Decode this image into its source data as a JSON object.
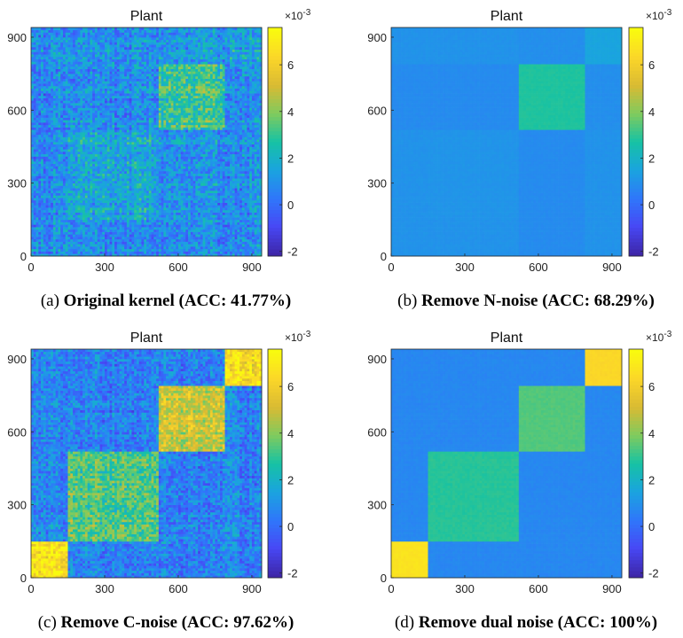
{
  "colormap": "parula",
  "colors": {
    "parula_stops": [
      "#3e26a8",
      "#4748f5",
      "#2f77fa",
      "#1aa4df",
      "#16c2a4",
      "#7fcb5e",
      "#d9ba33",
      "#fbd629",
      "#f9fb0e"
    ]
  },
  "chart_data": [
    {
      "type": "heatmap",
      "title": "Plant",
      "caption_label": "(a)",
      "caption_text": "Original kernel (ACC: 41.77%)",
      "xlim": [
        0,
        940
      ],
      "ylim": [
        0,
        940
      ],
      "xticks": [
        0,
        300,
        600,
        900
      ],
      "yticks": [
        0,
        300,
        600,
        900
      ],
      "color_range": [
        -2.2,
        7.6
      ],
      "colorbar_ticks": [
        -2,
        0,
        2,
        4,
        6
      ],
      "colorbar_multiplier": "×10-3",
      "cluster_boundaries": [
        0,
        150,
        520,
        790,
        940
      ],
      "cluster_block_means": [
        [
          1.0,
          0.8,
          0.8,
          0.9
        ],
        [
          0.8,
          1.6,
          0.9,
          0.9
        ],
        [
          0.8,
          0.9,
          3.0,
          1.0
        ],
        [
          0.9,
          0.9,
          1.0,
          1.4
        ]
      ],
      "noise_level": 1.3,
      "row_col_noise": 0.9
    },
    {
      "type": "heatmap",
      "title": "Plant",
      "caption_label": "(b)",
      "caption_text": "Remove N-noise (ACC: 68.29%)",
      "xlim": [
        0,
        940
      ],
      "ylim": [
        0,
        940
      ],
      "xticks": [
        0,
        300,
        600,
        900
      ],
      "yticks": [
        0,
        300,
        600,
        900
      ],
      "color_range": [
        -2.2,
        7.6
      ],
      "colorbar_ticks": [
        -2,
        0,
        2,
        4,
        6
      ],
      "colorbar_multiplier": "×10-3",
      "cluster_boundaries": [
        0,
        150,
        520,
        790,
        940
      ],
      "cluster_block_means": [
        [
          1.0,
          1.0,
          0.8,
          1.0
        ],
        [
          1.0,
          1.05,
          0.8,
          1.0
        ],
        [
          0.8,
          0.8,
          2.8,
          0.9
        ],
        [
          1.0,
          1.0,
          0.9,
          1.5
        ]
      ],
      "noise_level": 0.08,
      "row_col_noise": 0.03
    },
    {
      "type": "heatmap",
      "title": "Plant",
      "caption_label": "(c)",
      "caption_text": "Remove C-noise (ACC: 97.62%)",
      "xlim": [
        0,
        940
      ],
      "ylim": [
        0,
        940
      ],
      "xticks": [
        0,
        300,
        600,
        900
      ],
      "yticks": [
        0,
        300,
        600,
        900
      ],
      "color_range": [
        -2.2,
        7.6
      ],
      "colorbar_ticks": [
        -2,
        0,
        2,
        4,
        6
      ],
      "colorbar_multiplier": "×10-3",
      "cluster_boundaries": [
        0,
        150,
        520,
        790,
        940
      ],
      "cluster_block_means": [
        [
          6.6,
          0.6,
          0.5,
          0.6
        ],
        [
          0.6,
          3.4,
          0.5,
          0.6
        ],
        [
          0.5,
          0.5,
          5.0,
          0.6
        ],
        [
          0.6,
          0.6,
          0.6,
          6.6
        ]
      ],
      "noise_level": 1.2,
      "row_col_noise": 0.8
    },
    {
      "type": "heatmap",
      "title": "Plant",
      "caption_label": "(d)",
      "caption_text": "Remove dual noise (ACC: 100%)",
      "xlim": [
        0,
        940
      ],
      "ylim": [
        0,
        940
      ],
      "xticks": [
        0,
        300,
        600,
        900
      ],
      "yticks": [
        0,
        300,
        600,
        900
      ],
      "color_range": [
        -2.2,
        7.6
      ],
      "colorbar_ticks": [
        -2,
        0,
        2,
        4,
        6
      ],
      "colorbar_multiplier": "×10-3",
      "cluster_boundaries": [
        0,
        150,
        520,
        790,
        940
      ],
      "cluster_block_means": [
        [
          6.8,
          0.7,
          0.7,
          0.7
        ],
        [
          0.7,
          2.9,
          0.7,
          0.7
        ],
        [
          0.7,
          0.7,
          3.4,
          0.7
        ],
        [
          0.7,
          0.7,
          0.7,
          6.4
        ]
      ],
      "noise_level": 0.12,
      "row_col_noise": 0.05
    }
  ]
}
